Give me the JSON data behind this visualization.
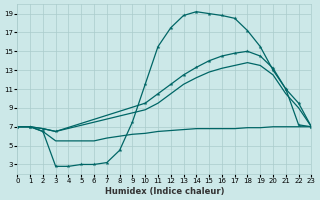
{
  "xlabel": "Humidex (Indice chaleur)",
  "bg_color": "#cce8e8",
  "grid_color": "#aacccc",
  "line_color": "#006666",
  "xlim": [
    0,
    23
  ],
  "ylim": [
    2,
    20
  ],
  "xticks": [
    0,
    1,
    2,
    3,
    4,
    5,
    6,
    7,
    8,
    9,
    10,
    11,
    12,
    13,
    14,
    15,
    16,
    17,
    18,
    19,
    20,
    21,
    22,
    23
  ],
  "yticks": [
    3,
    5,
    7,
    9,
    11,
    13,
    15,
    17,
    19
  ],
  "main_x": [
    0,
    1,
    2,
    3,
    4,
    5,
    6,
    7,
    8,
    9,
    10,
    11,
    12,
    13,
    14,
    15,
    16,
    17,
    18,
    19,
    20,
    21,
    22,
    23
  ],
  "main_y": [
    7.0,
    7.0,
    6.5,
    2.8,
    2.8,
    3.0,
    3.0,
    3.2,
    4.5,
    7.5,
    11.5,
    15.5,
    17.5,
    18.8,
    19.2,
    19.0,
    18.8,
    18.5,
    17.2,
    15.5,
    13.0,
    11.0,
    7.2,
    7.0
  ],
  "upper_x": [
    0,
    1,
    2,
    3,
    10,
    11,
    12,
    13,
    14,
    15,
    16,
    17,
    18,
    19,
    20,
    21,
    22,
    23
  ],
  "upper_y": [
    7.0,
    7.0,
    6.8,
    6.5,
    9.5,
    10.5,
    11.5,
    12.5,
    13.3,
    14.0,
    14.5,
    14.8,
    15.0,
    14.5,
    13.2,
    11.0,
    9.5,
    7.0
  ],
  "lower_x": [
    0,
    1,
    2,
    3,
    10,
    11,
    12,
    13,
    14,
    15,
    16,
    17,
    18,
    19,
    20,
    21,
    22,
    23
  ],
  "lower_y": [
    7.0,
    7.0,
    6.8,
    6.5,
    8.8,
    9.5,
    10.5,
    11.5,
    12.2,
    12.8,
    13.2,
    13.5,
    13.8,
    13.5,
    12.5,
    10.5,
    9.0,
    7.0
  ],
  "bottom_x": [
    0,
    1,
    2,
    3,
    4,
    5,
    6,
    7,
    8,
    9,
    10,
    11,
    12,
    13,
    14,
    15,
    16,
    17,
    18,
    19,
    20,
    21,
    22,
    23
  ],
  "bottom_y": [
    7.0,
    7.0,
    6.5,
    5.5,
    5.5,
    5.5,
    5.5,
    5.8,
    6.0,
    6.2,
    6.3,
    6.5,
    6.6,
    6.7,
    6.8,
    6.8,
    6.8,
    6.8,
    6.9,
    6.9,
    7.0,
    7.0,
    7.0,
    7.0
  ]
}
